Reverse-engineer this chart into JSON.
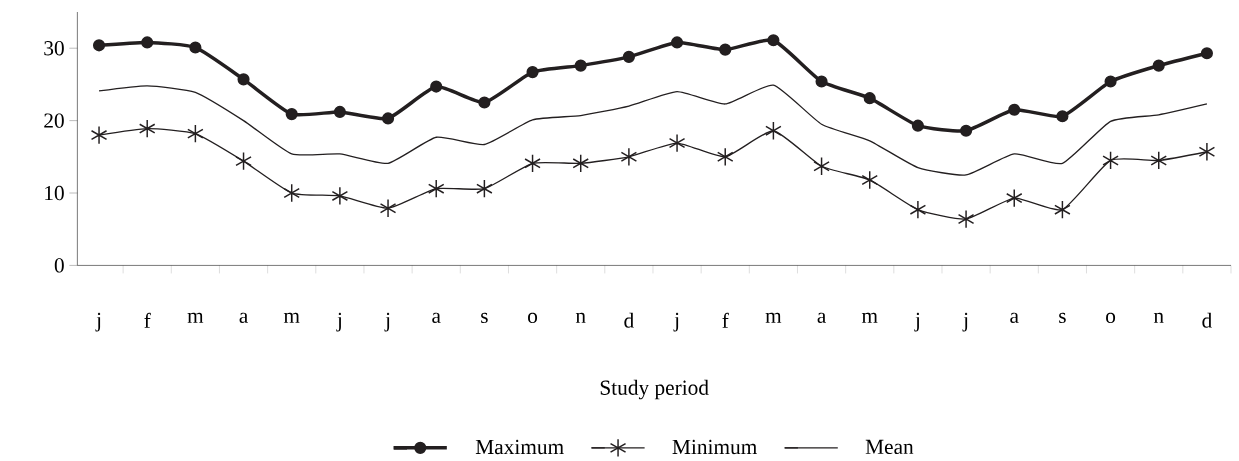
{
  "chart_data": {
    "type": "line",
    "xlabel": "Study period",
    "categories": [
      "j",
      "f",
      "m",
      "a",
      "m",
      "j",
      "j",
      "a",
      "s",
      "o",
      "n",
      "d",
      "j",
      "f",
      "m",
      "a",
      "m",
      "j",
      "j",
      "a",
      "s",
      "o",
      "n",
      "d"
    ],
    "series": [
      {
        "name": "Maximum",
        "color": "#231f20",
        "marker": "circle",
        "values": [
          30.4,
          30.8,
          30.1,
          25.7,
          20.9,
          21.2,
          20.3,
          24.7,
          22.5,
          26.7,
          27.6,
          28.8,
          30.8,
          29.8,
          31.1,
          25.4,
          23.1,
          19.3,
          18.6,
          21.5,
          20.6,
          25.4,
          27.6,
          29.3
        ]
      },
      {
        "name": "Minimum",
        "color": "#231f20",
        "marker": "cross",
        "values": [
          18.0,
          18.9,
          18.2,
          14.4,
          10.0,
          9.6,
          7.9,
          10.6,
          10.6,
          14.1,
          14.1,
          15.0,
          16.9,
          15.0,
          18.6,
          13.7,
          11.8,
          7.7,
          6.4,
          9.3,
          7.7,
          14.5,
          14.5,
          15.7
        ]
      },
      {
        "name": "Mean",
        "color": "#231f20",
        "marker": "none",
        "values": [
          24.1,
          24.8,
          23.9,
          20.0,
          15.4,
          15.4,
          14.1,
          17.7,
          16.7,
          20.1,
          20.7,
          22.0,
          24.0,
          22.3,
          24.9,
          19.5,
          17.2,
          13.5,
          12.5,
          15.4,
          14.1,
          19.9,
          20.8,
          22.3
        ]
      }
    ],
    "ylim": [
      0,
      35
    ],
    "yticks": [
      0,
      10,
      20,
      30
    ],
    "grid": false,
    "legend": "bottom",
    "line_style": "solid"
  }
}
